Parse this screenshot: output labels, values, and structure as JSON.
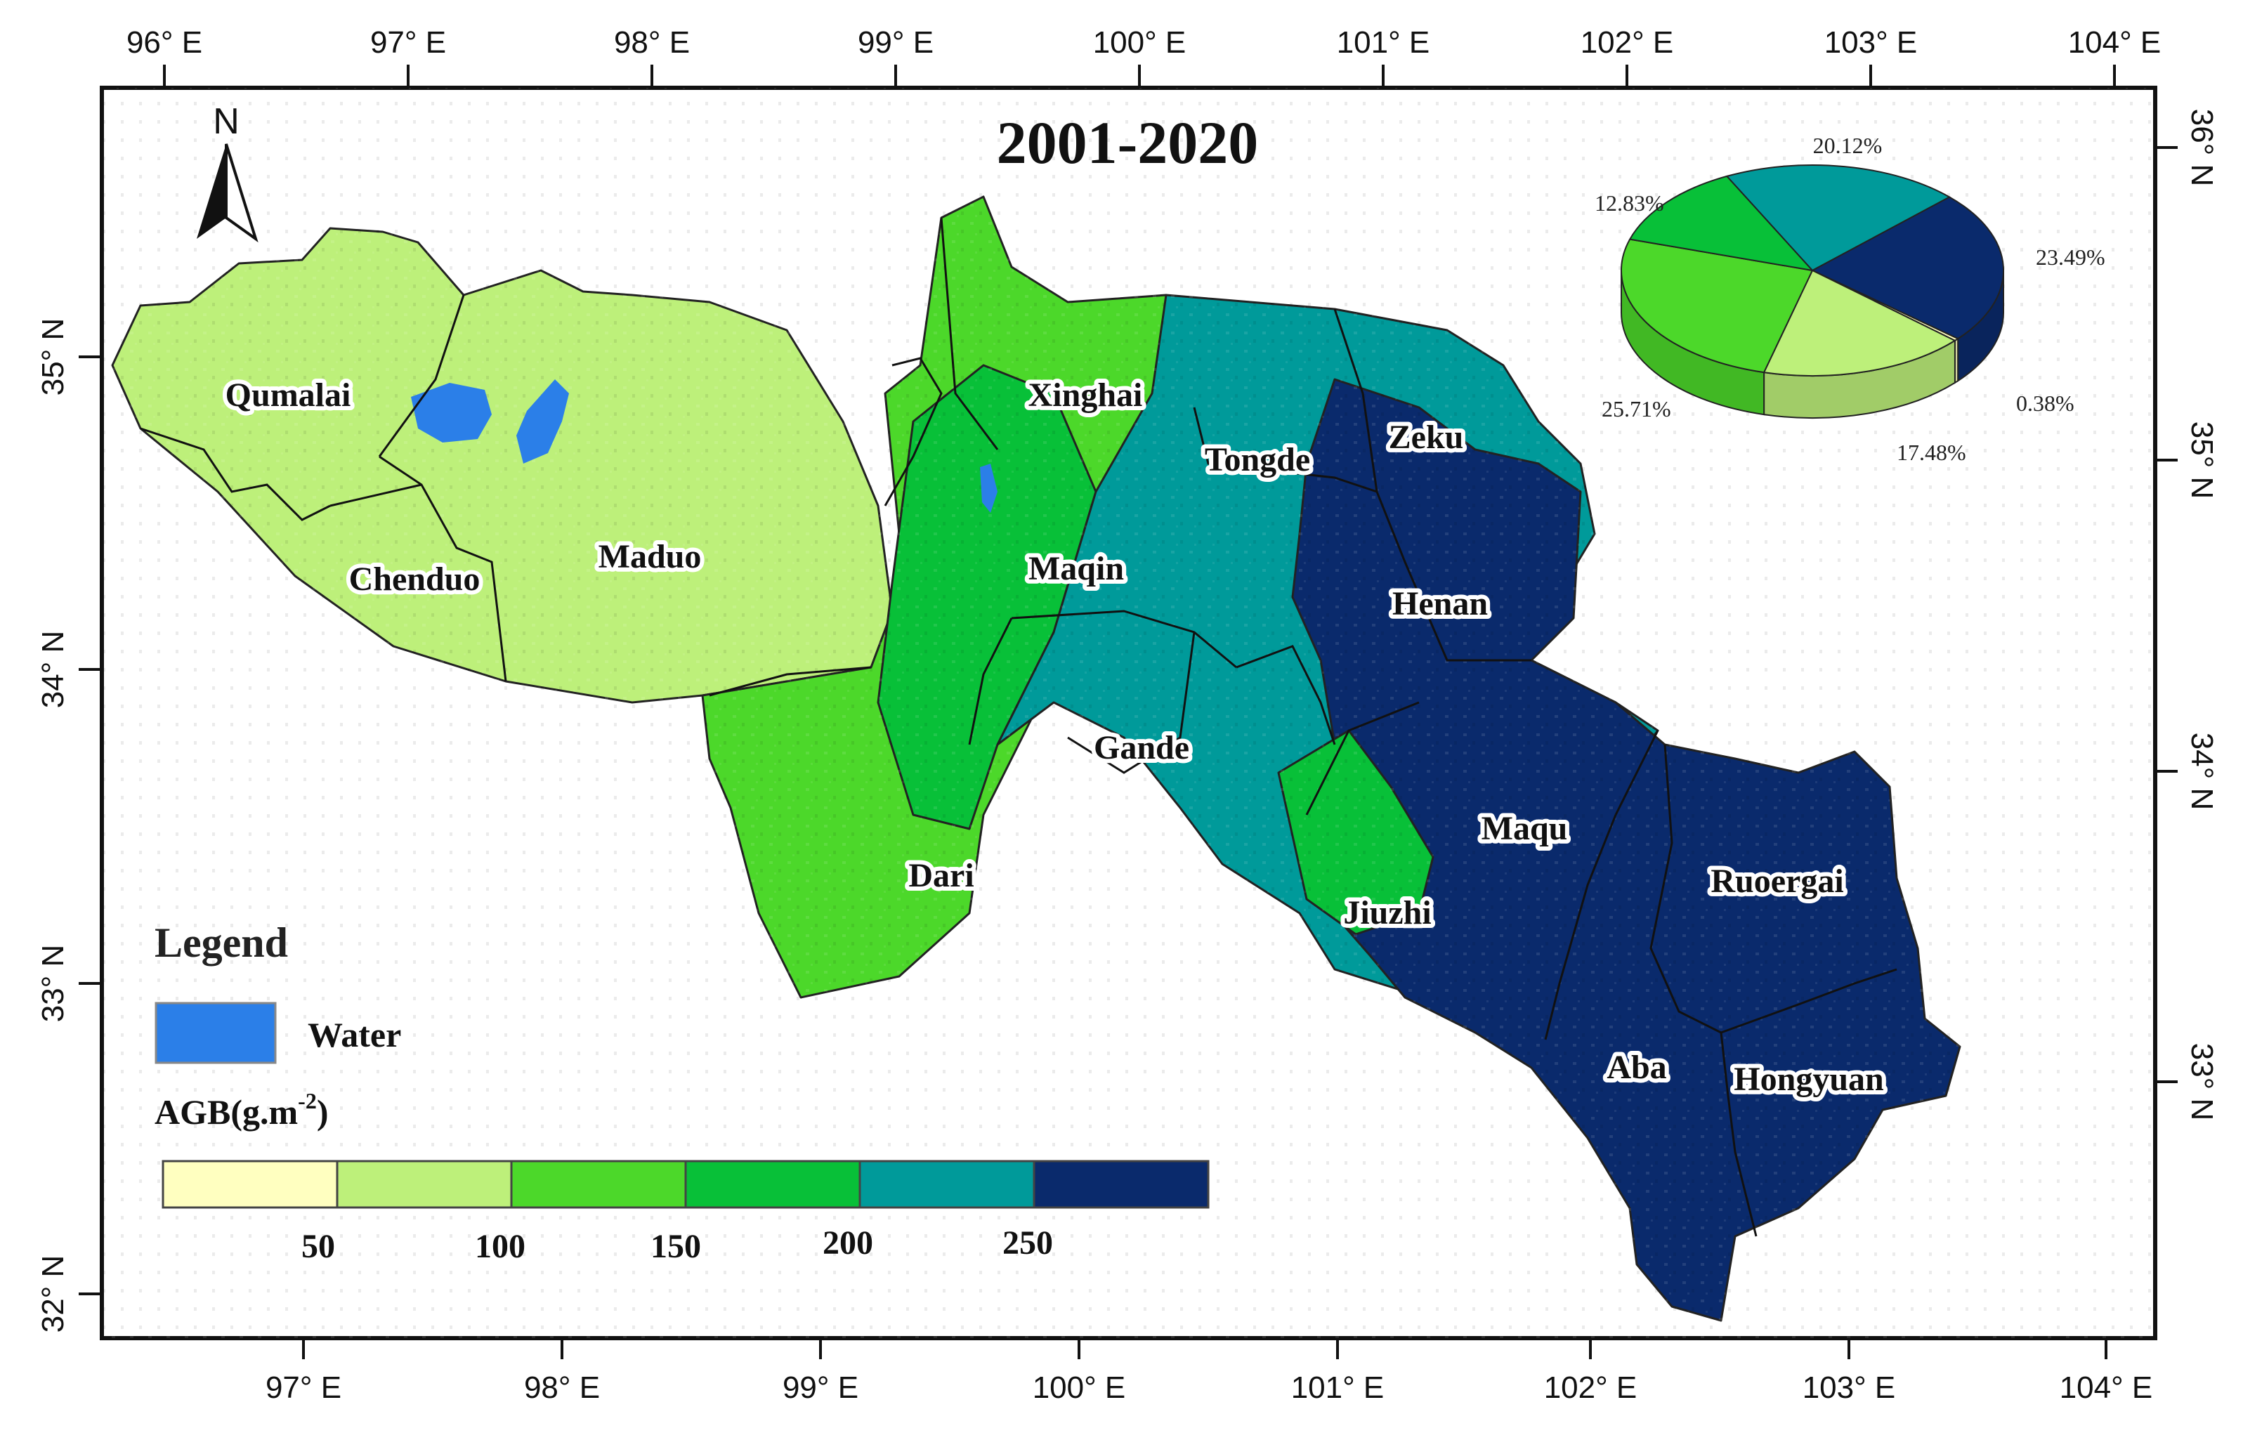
{
  "map": {
    "title": "2001-2020",
    "colors": {
      "water": "#2b7fe8",
      "class_50": "#ffffc0",
      "class_100": "#bdf07a",
      "class_150": "#4cd82a",
      "class_200": "#08c038",
      "class_250": "#009a9a",
      "class_max": "#0a2a6c"
    },
    "top_axis_labels": [
      "96° E",
      "97° E",
      "98° E",
      "99° E",
      "100° E",
      "101° E",
      "102° E",
      "103° E",
      "104° E"
    ],
    "bottom_axis_labels": [
      "97° E",
      "98° E",
      "99° E",
      "100° E",
      "101° E",
      "102° E",
      "103° E",
      "104° E"
    ],
    "left_axis_labels": [
      "35° N",
      "34° N",
      "33° N",
      "32° N"
    ],
    "right_axis_labels": [
      "36° N",
      "35° N",
      "34° N",
      "33° N"
    ],
    "north_arrow_label": "N",
    "counties": [
      {
        "name": "Qumalai"
      },
      {
        "name": "Chenduo"
      },
      {
        "name": "Maduo"
      },
      {
        "name": "Xinghai"
      },
      {
        "name": "Tongde"
      },
      {
        "name": "Zeku"
      },
      {
        "name": "Maqin"
      },
      {
        "name": "Henan"
      },
      {
        "name": "Gande"
      },
      {
        "name": "Dari"
      },
      {
        "name": "Maqu"
      },
      {
        "name": "Jiuzhi"
      },
      {
        "name": "Ruoergai"
      },
      {
        "name": "Aba"
      },
      {
        "name": "Hongyuan"
      }
    ],
    "legend": {
      "heading": "Legend",
      "water_label": "Water",
      "agb_label": "AGB(g.m",
      "agb_unit_sup": "-2",
      "agb_close": ")",
      "class_breaks": [
        "50",
        "100",
        "150",
        "200",
        "250"
      ]
    },
    "pie": {
      "slices": [
        {
          "label": "20.12%",
          "value": 20.12,
          "color": "#009a9a"
        },
        {
          "label": "23.49%",
          "value": 23.49,
          "color": "#0a2a6c"
        },
        {
          "label": "0.38%",
          "value": 0.38,
          "color": "#ffffc0"
        },
        {
          "label": "17.48%",
          "value": 17.48,
          "color": "#bdf07a"
        },
        {
          "label": "25.71%",
          "value": 25.71,
          "color": "#4cd82a"
        },
        {
          "label": "12.83%",
          "value": 12.83,
          "color": "#08c038"
        }
      ]
    }
  }
}
